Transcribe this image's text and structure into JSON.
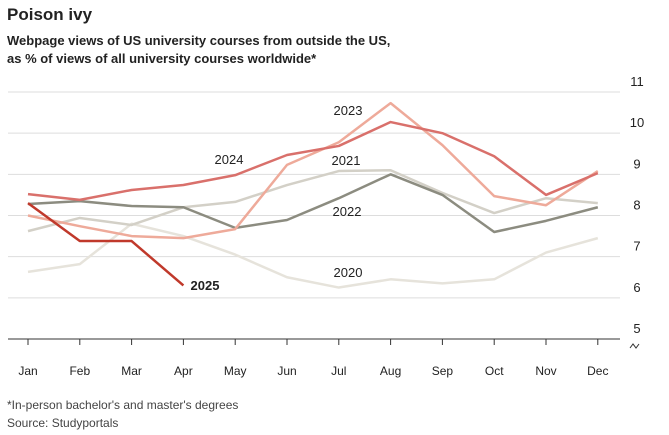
{
  "chart_data": {
    "type": "line",
    "title": "Poison ivy",
    "subtitle": [
      "Webpage views of US university courses from outside the US,",
      "as % of views of all university courses worldwide*"
    ],
    "footnote": "*In-person bachelor's and master's degrees",
    "source": "Source: Studyportals",
    "categories": [
      "Jan",
      "Feb",
      "Mar",
      "Apr",
      "May",
      "Jun",
      "Jul",
      "Aug",
      "Sep",
      "Oct",
      "Nov",
      "Dec"
    ],
    "ylim": [
      5,
      11
    ],
    "yticks": [
      5,
      6,
      7,
      8,
      9,
      10,
      11
    ],
    "grid": true,
    "series": [
      {
        "name": "2020",
        "color": "#e6e3db",
        "values": [
          6.63,
          6.82,
          7.8,
          7.5,
          7.05,
          6.5,
          6.25,
          6.45,
          6.35,
          6.45,
          7.1,
          7.45
        ]
      },
      {
        "name": "2021",
        "color": "#d3d0c7",
        "values": [
          7.62,
          7.94,
          7.77,
          8.2,
          8.33,
          8.74,
          9.08,
          9.1,
          8.55,
          8.06,
          8.42,
          8.3
        ]
      },
      {
        "name": "2022",
        "color": "#8c8c80",
        "values": [
          8.28,
          8.35,
          8.23,
          8.2,
          7.7,
          7.89,
          8.42,
          9.0,
          8.5,
          7.6,
          7.87,
          8.2
        ]
      },
      {
        "name": "2023",
        "color": "#eeaa9a",
        "values": [
          8.0,
          7.74,
          7.5,
          7.45,
          7.67,
          9.23,
          9.78,
          10.73,
          9.71,
          8.47,
          8.25,
          9.08
        ]
      },
      {
        "name": "2024",
        "color": "#d9706b",
        "values": [
          8.52,
          8.38,
          8.62,
          8.74,
          8.98,
          9.47,
          9.69,
          10.27,
          10.0,
          9.44,
          8.5,
          9.03
        ]
      },
      {
        "name": "2025",
        "color": "#c0392b",
        "values": [
          8.3,
          7.38,
          7.38,
          6.3,
          null,
          null,
          null,
          null,
          null,
          null,
          null,
          null
        ]
      }
    ]
  }
}
